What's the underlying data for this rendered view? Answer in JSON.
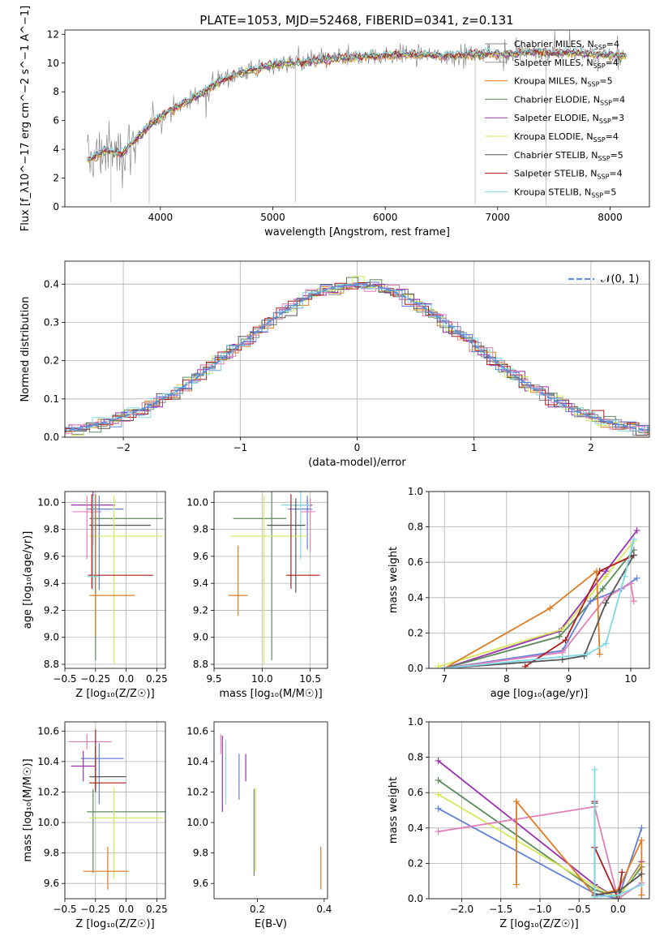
{
  "title": "PLATE=1053, MJD=52468, FIBERID=0341, z=0.131",
  "colors": {
    "Chabrier MILES": "#888888",
    "Salpeter MILES": "#999999",
    "Kroupa MILES": "#e07b22",
    "Chabrier ELODIE": "#5b8a5b",
    "Salpeter ELODIE": "#9b30b0",
    "Kroupa ELODIE": "#d4e85a",
    "Chabrier STELIB": "#555555",
    "Salpeter STELIB": "#b01c1c",
    "Kroupa STELIB": "#7fd8e6",
    "blue": "#6080d8",
    "pink": "#e080b8"
  },
  "chart_data": [
    {
      "id": "spectrum",
      "type": "line",
      "xlabel": "wavelength [Angstrom, rest frame]",
      "ylabel": "Flux [f_λ10^−17 erg cm^−2 s^−1 A^−1]",
      "xlim": [
        3150,
        8350
      ],
      "ylim": [
        0,
        12.3
      ],
      "xticks": [
        4000,
        5000,
        6000,
        7000,
        8000
      ],
      "yticks": [
        0,
        2,
        4,
        6,
        8,
        10,
        12
      ],
      "legend_position": "top-right",
      "legend": [
        {
          "label": "Chabrier MILES, N",
          "sub": "SSP",
          "eq": "=4",
          "color": "#888888"
        },
        {
          "label": "Salpeter MILES, N",
          "sub": "SSP",
          "eq": "=4",
          "color": "#999999"
        },
        {
          "label": "Kroupa MILES, N",
          "sub": "SSP",
          "eq": "=5",
          "color": "#e07b22"
        },
        {
          "label": "Chabrier ELODIE, N",
          "sub": "SSP",
          "eq": "=4",
          "color": "#5b8a5b"
        },
        {
          "label": "Salpeter ELODIE, N",
          "sub": "SSP",
          "eq": "=3",
          "color": "#9b30b0"
        },
        {
          "label": "Kroupa ELODIE, N",
          "sub": "SSP",
          "eq": "=4",
          "color": "#d4e85a"
        },
        {
          "label": "Chabrier STELIB, N",
          "sub": "SSP",
          "eq": "=5",
          "color": "#555555"
        },
        {
          "label": "Salpeter STELIB, N",
          "sub": "SSP",
          "eq": "=4",
          "color": "#b01c1c"
        },
        {
          "label": "Kroupa STELIB, N",
          "sub": "SSP",
          "eq": "=5",
          "color": "#7fd8e6"
        }
      ],
      "data_envelope": {
        "x": [
          3350,
          3500,
          3650,
          3800,
          3950,
          4100,
          4300,
          4500,
          4700,
          4900,
          5100,
          5300,
          5500,
          5700,
          5900,
          6100,
          6300,
          6500,
          6700,
          6900,
          7100,
          7300,
          7500,
          7700,
          7900,
          8100
        ],
        "y": [
          3.2,
          3.9,
          3.7,
          4.8,
          6.0,
          6.8,
          7.6,
          8.6,
          9.3,
          9.7,
          10.0,
          10.1,
          10.3,
          10.4,
          10.5,
          10.6,
          10.6,
          10.5,
          10.6,
          10.7,
          10.6,
          10.8,
          10.7,
          10.7,
          10.6,
          10.5
        ]
      }
    },
    {
      "id": "residuals",
      "type": "histogram",
      "xlabel": "(data-model)/error",
      "ylabel": "Normed distribution",
      "xlim": [
        -2.5,
        2.5
      ],
      "ylim": [
        0,
        0.46
      ],
      "xticks": [
        -2,
        -1,
        0,
        1,
        2
      ],
      "yticks": [
        0.0,
        0.1,
        0.2,
        0.3,
        0.4
      ],
      "grid": true,
      "legend_position": "top-right",
      "reference_label": "𝒩(0, 1)"
    },
    {
      "id": "z-age",
      "type": "scatter",
      "xlabel": "Z [log₁₀(Z/Z☉)]",
      "ylabel": "age  [log₁₀(age/yr)]",
      "xlim": [
        -0.5,
        0.32
      ],
      "ylim": [
        8.77,
        10.08
      ],
      "xticks": [
        -0.5,
        -0.25,
        0.0,
        0.25
      ],
      "yticks": [
        8.8,
        9.0,
        9.2,
        9.4,
        9.6,
        9.8,
        10.0
      ],
      "grid": true,
      "points": [
        {
          "x": -0.27,
          "y": 9.98,
          "xerr": [
            0.18,
            0.18
          ],
          "yerr": [
            0.3,
            0.1
          ],
          "color": "#9b30b0"
        },
        {
          "x": -0.32,
          "y": 9.93,
          "xerr": [
            0.12,
            0.12
          ],
          "yerr": [
            0.35,
            0.12
          ],
          "color": "#e080b8"
        },
        {
          "x": -0.22,
          "y": 9.95,
          "xerr": [
            0.1,
            0.2
          ],
          "yerr": [
            0.6,
            0.1
          ],
          "color": "#6080d8"
        },
        {
          "x": -0.25,
          "y": 9.88,
          "xerr": [
            0.05,
            0.55
          ],
          "yerr": [
            1.05,
            0.18
          ],
          "color": "#5b8a5b"
        },
        {
          "x": -0.25,
          "y": 9.83,
          "xerr": [
            0.05,
            0.45
          ],
          "yerr": [
            0.5,
            0.2
          ],
          "color": "#555555"
        },
        {
          "x": -0.1,
          "y": 9.75,
          "xerr": [
            0.2,
            0.4
          ],
          "yerr": [
            0.95,
            0.3
          ],
          "color": "#d4e85a"
        },
        {
          "x": -0.28,
          "y": 9.46,
          "xerr": [
            0.03,
            0.5
          ],
          "yerr": [
            0.1,
            0.6
          ],
          "color": "#b01c1c"
        },
        {
          "x": -0.25,
          "y": 9.31,
          "xerr": [
            0.05,
            0.32
          ],
          "yerr": [
            0.3,
            0.75
          ],
          "color": "#e07b22"
        },
        {
          "x": -0.27,
          "y": 9.45,
          "xerr": [
            0.05,
            0.05
          ],
          "yerr": [
            0.1,
            0.6
          ],
          "color": "#7fd8e6"
        }
      ]
    },
    {
      "id": "mass-age",
      "type": "scatter",
      "xlabel": "mass [log₁₀(M/M☉)]",
      "ylabel": "",
      "xlim": [
        9.5,
        10.68
      ],
      "ylim": [
        8.77,
        10.08
      ],
      "xticks": [
        9.5,
        10.0,
        10.5
      ],
      "yticks": [
        8.8,
        9.0,
        9.2,
        9.4,
        9.6,
        9.8,
        10.0
      ],
      "grid": true,
      "points": [
        {
          "x": 10.47,
          "y": 9.98,
          "xerr": [
            0.15,
            0.05
          ],
          "yerr": [
            0.05,
            0.05
          ],
          "color": "#9b30b0"
        },
        {
          "x": 10.47,
          "y": 9.95,
          "xerr": [
            0.2,
            0.05
          ],
          "yerr": [
            0.3,
            0.1
          ],
          "color": "#6080d8"
        },
        {
          "x": 10.5,
          "y": 9.93,
          "xerr": [
            0.1,
            0.05
          ],
          "yerr": [
            0.3,
            0.1
          ],
          "color": "#e080b8"
        },
        {
          "x": 10.4,
          "y": 9.98,
          "xerr": [
            0.2,
            0.1
          ],
          "yerr": [
            0.4,
            0.1
          ],
          "color": "#7fd8e6"
        },
        {
          "x": 10.1,
          "y": 9.88,
          "xerr": [
            0.4,
            0.15
          ],
          "yerr": [
            1.05,
            0.2
          ],
          "color": "#5b8a5b"
        },
        {
          "x": 10.35,
          "y": 9.83,
          "xerr": [
            0.3,
            0.1
          ],
          "yerr": [
            0.5,
            0.2
          ],
          "color": "#555555"
        },
        {
          "x": 10.02,
          "y": 9.75,
          "xerr": [
            0.35,
            0.45
          ],
          "yerr": [
            0.95,
            0.3
          ],
          "color": "#d4e85a"
        },
        {
          "x": 10.3,
          "y": 9.46,
          "xerr": [
            0.05,
            0.3
          ],
          "yerr": [
            0.1,
            0.6
          ],
          "color": "#b01c1c"
        },
        {
          "x": 9.75,
          "y": 9.31,
          "xerr": [
            0.1,
            0.1
          ],
          "yerr": [
            0.15,
            0.37
          ],
          "color": "#e07b22"
        }
      ]
    },
    {
      "id": "age-weight",
      "type": "line",
      "xlabel": "age  [log₁₀(age/yr)]",
      "ylabel": "mass weight",
      "xlim": [
        6.75,
        10.3
      ],
      "ylim": [
        0,
        1.0
      ],
      "xticks": [
        7,
        8,
        9,
        10
      ],
      "yticks": [
        0.0,
        0.2,
        0.4,
        0.6,
        0.8,
        1.0
      ],
      "grid": true,
      "series": [
        {
          "x": [
            7.0,
            8.85,
            9.6,
            10.1
          ],
          "y": [
            0.0,
            0.21,
            0.55,
            0.78
          ],
          "color": "#9b30b0"
        },
        {
          "x": [
            6.9,
            8.9,
            9.6,
            10.05
          ],
          "y": [
            0.01,
            0.22,
            0.52,
            0.72
          ],
          "color": "#d4e85a"
        },
        {
          "x": [
            7.0,
            8.85,
            9.55,
            10.05
          ],
          "y": [
            0.0,
            0.18,
            0.45,
            0.67
          ],
          "color": "#5b8a5b"
        },
        {
          "x": [
            7.0,
            8.9,
            9.35,
            9.85,
            10.1
          ],
          "y": [
            0.0,
            0.1,
            0.38,
            0.45,
            0.51
          ],
          "color": "#6080d8"
        },
        {
          "x": [
            7.0,
            8.9,
            9.6,
            10.0,
            10.05
          ],
          "y": [
            0.0,
            0.09,
            0.4,
            0.48,
            0.38
          ],
          "color": "#e080b8"
        },
        {
          "x": [
            8.3,
            8.95,
            9.5,
            10.05
          ],
          "y": [
            0.01,
            0.16,
            0.55,
            0.64
          ],
          "color": "#b01c1c"
        },
        {
          "x": [
            7.0,
            8.7,
            9.45,
            9.5
          ],
          "y": [
            0.0,
            0.34,
            0.55,
            0.08
          ],
          "color": "#e07b22"
        },
        {
          "x": [
            7.0,
            8.9,
            9.25,
            9.6,
            10.05
          ],
          "y": [
            0.0,
            0.05,
            0.07,
            0.37,
            0.64
          ],
          "color": "#555555"
        },
        {
          "x": [
            7.0,
            9.3,
            9.6,
            9.9,
            10.05
          ],
          "y": [
            0.0,
            0.08,
            0.14,
            0.52,
            0.73
          ],
          "color": "#7fd8e6"
        }
      ]
    },
    {
      "id": "z-mass",
      "type": "scatter",
      "xlabel": "Z [log₁₀(Z/Z☉)]",
      "ylabel": "mass [log₁₀(M/M☉)]",
      "xlim": [
        -0.5,
        0.32
      ],
      "ylim": [
        9.5,
        10.66
      ],
      "xticks": [
        -0.5,
        -0.25,
        0.0,
        0.25
      ],
      "yticks": [
        9.6,
        9.8,
        10.0,
        10.2,
        10.4,
        10.6
      ],
      "grid": true,
      "points": [
        {
          "x": -0.32,
          "y": 10.53,
          "xerr": [
            0.15,
            0.2
          ],
          "yerr": [
            0.05,
            0.05
          ],
          "color": "#e080b8"
        },
        {
          "x": -0.22,
          "y": 10.42,
          "xerr": [
            0.15,
            0.2
          ],
          "yerr": [
            0.3,
            0.1
          ],
          "color": "#6080d8"
        },
        {
          "x": -0.35,
          "y": 10.37,
          "xerr": [
            0.1,
            0.1
          ],
          "yerr": [
            0.1,
            0.1
          ],
          "color": "#9b30b0"
        },
        {
          "x": -0.25,
          "y": 10.3,
          "xerr": [
            0.05,
            0.25
          ],
          "yerr": [
            0.1,
            0.2
          ],
          "color": "#555555"
        },
        {
          "x": -0.25,
          "y": 10.26,
          "xerr": [
            0.05,
            0.25
          ],
          "yerr": [
            0.05,
            0.35
          ],
          "color": "#b01c1c"
        },
        {
          "x": -0.27,
          "y": 10.07,
          "xerr": [
            0.05,
            0.6
          ],
          "yerr": [
            0.4,
            0.15
          ],
          "color": "#5b8a5b"
        },
        {
          "x": -0.1,
          "y": 10.03,
          "xerr": [
            0.2,
            0.4
          ],
          "yerr": [
            0.4,
            0.2
          ],
          "color": "#d4e85a"
        },
        {
          "x": -0.15,
          "y": 9.68,
          "xerr": [
            0.2,
            0.17
          ],
          "yerr": [
            0.12,
            0.16
          ],
          "color": "#e07b22"
        }
      ]
    },
    {
      "id": "ebv-mass",
      "type": "scatter",
      "xlabel": "E(B-V)",
      "ylabel": "",
      "xlim": [
        0.07,
        0.41
      ],
      "ylim": [
        9.5,
        10.66
      ],
      "xticks": [
        0.2,
        0.4
      ],
      "yticks": [
        9.6,
        9.8,
        10.0,
        10.2,
        10.4,
        10.6
      ],
      "grid": false,
      "points": [
        {
          "x": 0.09,
          "y": 10.53,
          "yerr": [
            0.08,
            0.05
          ],
          "color": "#e080b8"
        },
        {
          "x": 0.105,
          "y": 10.42,
          "yerr": [
            0.3,
            0.12
          ],
          "color": "#7fd8e6"
        },
        {
          "x": 0.095,
          "y": 10.37,
          "yerr": [
            0.3,
            0.2
          ],
          "color": "#9b30b0"
        },
        {
          "x": 0.145,
          "y": 10.3,
          "yerr": [
            0.15,
            0.15
          ],
          "color": "#6080d8"
        },
        {
          "x": 0.165,
          "y": 10.35,
          "yerr": [
            0.08,
            0.1
          ],
          "color": "#9b30b0"
        },
        {
          "x": 0.19,
          "y": 10.07,
          "yerr": [
            0.42,
            0.15
          ],
          "color": "#5b8a5b"
        },
        {
          "x": 0.195,
          "y": 10.03,
          "yerr": [
            0.35,
            0.2
          ],
          "color": "#d4e85a"
        },
        {
          "x": 0.39,
          "y": 9.68,
          "yerr": [
            0.12,
            0.16
          ],
          "color": "#e07b22"
        }
      ]
    },
    {
      "id": "z-weight",
      "type": "line",
      "xlabel": "Z [log₁₀(Z/Z☉)]",
      "ylabel": "mass weight",
      "xlim": [
        -2.42,
        0.4
      ],
      "ylim": [
        0,
        1.0
      ],
      "xticks": [
        -2.0,
        -1.5,
        -1.0,
        -0.5,
        0.0
      ],
      "yticks": [
        0.0,
        0.2,
        0.4,
        0.6,
        0.8,
        1.0
      ],
      "grid": true,
      "series": [
        {
          "x": [
            -2.3,
            -0.3,
            0.0,
            0.3
          ],
          "y": [
            0.78,
            0.08,
            0.0,
            0.21
          ],
          "color": "#9b30b0"
        },
        {
          "x": [
            -2.3,
            -0.3,
            0.0,
            0.3
          ],
          "y": [
            0.67,
            0.05,
            0.01,
            0.18
          ],
          "color": "#5b8a5b"
        },
        {
          "x": [
            -2.3,
            -0.3,
            0.0,
            0.3
          ],
          "y": [
            0.59,
            0.07,
            0.0,
            0.2
          ],
          "color": "#d4e85a"
        },
        {
          "x": [
            -2.3,
            -0.3,
            0.0,
            0.3
          ],
          "y": [
            0.51,
            0.03,
            0.0,
            0.4
          ],
          "color": "#6080d8"
        },
        {
          "x": [
            -2.3,
            -0.3,
            0.0,
            0.3
          ],
          "y": [
            0.38,
            0.52,
            0.0,
            0.09
          ],
          "color": "#e080b8"
        },
        {
          "x": [
            -1.3,
            -1.3,
            -0.3,
            0.0,
            0.3,
            0.3
          ],
          "y": [
            0.08,
            0.55,
            0.02,
            0.05,
            0.33,
            0.02
          ],
          "color": "#e07b22"
        },
        {
          "x": [
            -0.3,
            -0.3,
            0.0,
            0.05
          ],
          "y": [
            0.55,
            0.29,
            0.0,
            0.15
          ],
          "color": "#b01c1c"
        },
        {
          "x": [
            -0.3,
            -0.3,
            0.0,
            0.3
          ],
          "y": [
            0.54,
            0.02,
            0.04,
            0.14
          ],
          "color": "#555555"
        },
        {
          "x": [
            -0.3,
            -0.3,
            0.0,
            0.3
          ],
          "y": [
            0.73,
            0.01,
            0.02,
            0.08
          ],
          "color": "#7fd8e6"
        }
      ]
    }
  ]
}
